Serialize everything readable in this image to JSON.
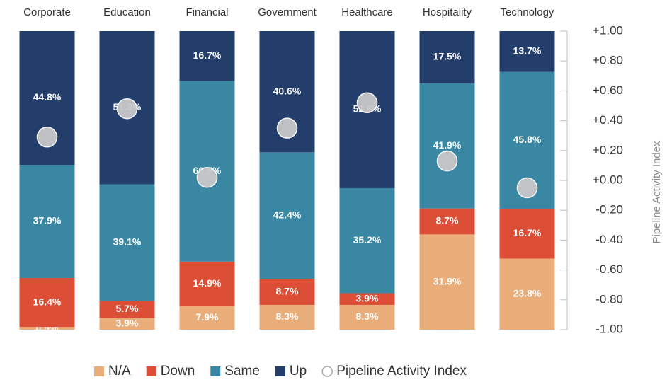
{
  "chart_data": {
    "type": "bar",
    "stacked": true,
    "categories": [
      "Corporate",
      "Education",
      "Financial",
      "Government",
      "Healthcare",
      "Hospitality",
      "Technology"
    ],
    "ylim": [
      0,
      100
    ],
    "y2label": "Pipeline Activity Index",
    "y2lim": [
      -1,
      1
    ],
    "y2ticks": [
      {
        "value": 1,
        "label": "+1.00"
      },
      {
        "value": 0.8,
        "label": "+0.80"
      },
      {
        "value": 0.6,
        "label": "+0.60"
      },
      {
        "value": 0.4,
        "label": "+0.40"
      },
      {
        "value": 0.2,
        "label": "+0.20"
      },
      {
        "value": 0,
        "label": "+0.00"
      },
      {
        "value": -0.2,
        "label": "-0.20"
      },
      {
        "value": -0.4,
        "label": "-0.40"
      },
      {
        "value": -0.6,
        "label": "-0.60"
      },
      {
        "value": -0.8,
        "label": "-0.80"
      },
      {
        "value": -1,
        "label": "-1.00"
      }
    ],
    "legend": "bottom",
    "series": [
      {
        "name": "N/A",
        "color": "#e9ad7a",
        "values": [
          0.9,
          3.9,
          7.9,
          8.3,
          8.3,
          31.9,
          23.8
        ],
        "value_labels": [
          "0.9%",
          "3.9%",
          "7.9%",
          "8.3%",
          "8.3%",
          "31.9%",
          "23.8%"
        ]
      },
      {
        "name": "Down",
        "color": "#dc4e36",
        "values": [
          16.4,
          5.7,
          14.9,
          8.7,
          3.9,
          8.7,
          16.7
        ],
        "value_labels": [
          "16.4%",
          "5.7%",
          "14.9%",
          "8.7%",
          "3.9%",
          "8.7%",
          "16.7%"
        ]
      },
      {
        "name": "Same",
        "color": "#3a87a4",
        "values": [
          37.9,
          39.1,
          60.5,
          42.4,
          35.2,
          41.9,
          45.8
        ],
        "value_labels": [
          "37.9%",
          "39.1%",
          "60.5%",
          "42.4%",
          "35.2%",
          "41.9%",
          "45.8%"
        ]
      },
      {
        "name": "Up",
        "color": "#233e6b",
        "values": [
          44.8,
          51.3,
          16.7,
          40.6,
          52.6,
          17.5,
          13.7
        ],
        "value_labels": [
          "44.8%",
          "51.3%",
          "16.7%",
          "40.6%",
          "52.6%",
          "17.5%",
          "13.7%"
        ]
      },
      {
        "name": "Pipeline Activity Index",
        "color": "#c8c8c8",
        "axis": "y2",
        "values": [
          0.29,
          0.48,
          0.02,
          0.35,
          0.52,
          0.13,
          -0.05
        ]
      }
    ]
  }
}
